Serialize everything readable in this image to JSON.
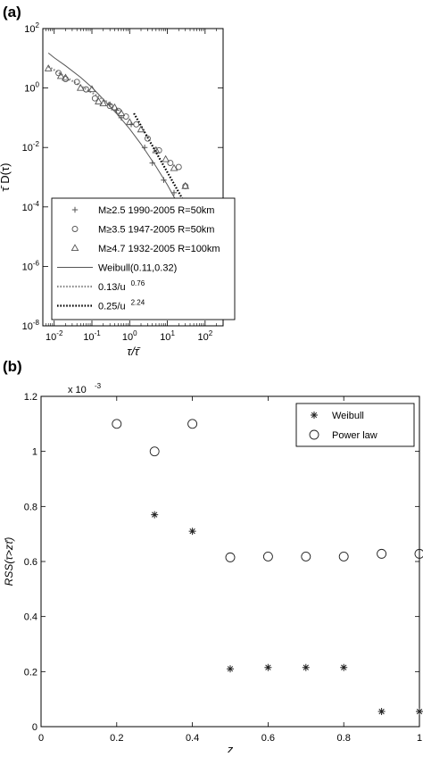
{
  "figure": {
    "panel_a_label": "(a)",
    "panel_b_label": "(b)"
  },
  "chart_data": [
    {
      "type": "scatter",
      "panel": "(a)",
      "title": "",
      "xlabel": "τ/τ̄",
      "ylabel": "τ̄ D(τ)",
      "xscale": "log",
      "yscale": "log",
      "xlim": [
        0.005,
        300
      ],
      "ylim": [
        1e-08,
        100
      ],
      "x_ticks": [
        {
          "value": 0.01,
          "base": "10",
          "exp": "-2"
        },
        {
          "value": 0.1,
          "base": "10",
          "exp": "-1"
        },
        {
          "value": 1,
          "base": "10",
          "exp": "0"
        },
        {
          "value": 10,
          "base": "10",
          "exp": "1"
        },
        {
          "value": 100,
          "base": "10",
          "exp": "2"
        }
      ],
      "y_ticks": [
        {
          "value": 1e-08,
          "base": "10",
          "exp": "-8"
        },
        {
          "value": 1e-06,
          "base": "10",
          "exp": "-6"
        },
        {
          "value": 0.0001,
          "base": "10",
          "exp": "-4"
        },
        {
          "value": 0.01,
          "base": "10",
          "exp": "-2"
        },
        {
          "value": 1,
          "base": "10",
          "exp": "0"
        },
        {
          "value": 100,
          "base": "10",
          "exp": "2"
        }
      ],
      "grid": false,
      "legend_position": "bottom-left",
      "series": [
        {
          "name": "M≥2.5 1990-2005 R=50km",
          "kind": "marker",
          "marker": "plus",
          "x": [
            0.3,
            0.45,
            0.6,
            1.1,
            2.5,
            4,
            8,
            15,
            30,
            60,
            100,
            150,
            220
          ],
          "y": [
            0.28,
            0.18,
            0.1,
            0.06,
            0.01,
            0.003,
            0.0008,
            0.0003,
            0.0001,
            3e-05,
            1e-05,
            1.5e-06,
            1.8e-06
          ]
        },
        {
          "name": "M≥3.5 1947-2005 R=50km",
          "kind": "marker",
          "marker": "circle",
          "x": [
            0.013,
            0.02,
            0.04,
            0.07,
            0.12,
            0.3,
            0.5,
            0.8,
            1.5,
            3,
            6,
            12,
            20,
            30,
            50,
            70
          ],
          "y": [
            3.2,
            2.0,
            1.6,
            0.9,
            0.45,
            0.25,
            0.17,
            0.11,
            0.06,
            0.02,
            0.008,
            0.003,
            0.0022,
            0.0005,
            2e-05,
            8e-06
          ]
        },
        {
          "name": "M≥4.7 1932-2005 R=100km",
          "kind": "marker",
          "marker": "triangle",
          "x": [
            0.007,
            0.015,
            0.02,
            0.05,
            0.1,
            0.15,
            0.2,
            0.4,
            0.6,
            1.0,
            2.0,
            5,
            9,
            15,
            30,
            45
          ],
          "y": [
            4.5,
            2.5,
            2.2,
            1.0,
            0.9,
            0.35,
            0.3,
            0.22,
            0.14,
            0.07,
            0.04,
            0.008,
            0.004,
            0.002,
            0.0005,
            0.0001
          ]
        },
        {
          "name": "Weibull(0.11,0.32)",
          "kind": "line",
          "style": "solid",
          "color": "#555555",
          "x": [
            0.007,
            0.01,
            0.02,
            0.05,
            0.1,
            0.2,
            0.5,
            1,
            2,
            5,
            10,
            20,
            50,
            100,
            200
          ],
          "y": [
            15,
            10.5,
            5.6,
            2.3,
            1.05,
            0.42,
            0.12,
            0.042,
            0.013,
            0.0023,
            0.00055,
            0.00011,
            8.5e-06,
            1e-06,
            8e-08
          ]
        },
        {
          "name": "0.13/u",
          "name_exp": "0.76",
          "kind": "line",
          "style": "dotted",
          "color": "#8a8a8a",
          "x": [
            0.007,
            0.3
          ],
          "y": [
            5.3,
            0.3
          ]
        },
        {
          "name": "0.25/u",
          "name_exp": "2.24",
          "kind": "line",
          "style": "dotted",
          "color": "#000000",
          "x": [
            1.3,
            200
          ],
          "y": [
            0.14,
            1.8e-06
          ]
        }
      ]
    },
    {
      "type": "scatter",
      "panel": "(b)",
      "title": "",
      "xlabel": "z",
      "ylabel": "RSS(τ>zτ̄)",
      "xlim": [
        0,
        1
      ],
      "ylim": [
        0,
        1.2
      ],
      "y_multiplier": "x 10",
      "y_multiplier_exp": "-3",
      "x_ticks": [
        "0",
        "0.2",
        "0.4",
        "0.6",
        "0.8",
        "1"
      ],
      "y_ticks": [
        "0",
        "0.2",
        "0.4",
        "0.6",
        "0.8",
        "1",
        "1.2"
      ],
      "grid": false,
      "legend_position": "top-right",
      "series": [
        {
          "name": "Weibull",
          "marker": "asterisk",
          "x": [
            0.3,
            0.4,
            0.5,
            0.6,
            0.7,
            0.8,
            0.9,
            1.0
          ],
          "y": [
            0.77,
            0.71,
            0.21,
            0.215,
            0.215,
            0.215,
            0.055,
            0.055
          ]
        },
        {
          "name": "Power law",
          "marker": "circle",
          "x": [
            0.2,
            0.3,
            0.4,
            0.5,
            0.6,
            0.7,
            0.8,
            0.9,
            1.0
          ],
          "y": [
            1.1,
            1.0,
            1.1,
            0.615,
            0.618,
            0.618,
            0.618,
            0.628,
            0.628
          ]
        }
      ]
    }
  ]
}
